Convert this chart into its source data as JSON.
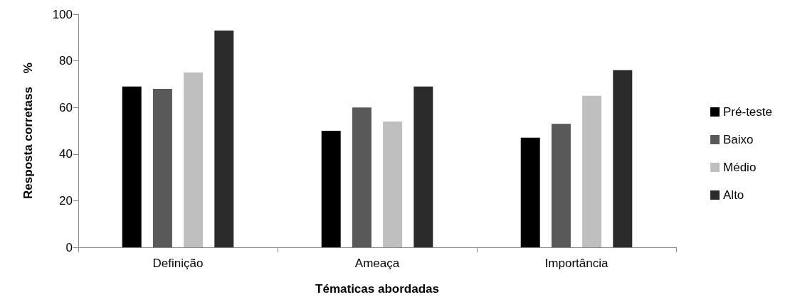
{
  "chart_data": {
    "type": "bar",
    "xlabel": "Tématicas abordadas",
    "ylabel": "Resposta corretass    %",
    "categories": [
      "Definição",
      "Ameaça",
      "Importância"
    ],
    "series": [
      {
        "name": "Pré-teste",
        "color": "#000000",
        "values": [
          69,
          50,
          47
        ]
      },
      {
        "name": "Baixo",
        "color": "#595959",
        "values": [
          68,
          60,
          53
        ]
      },
      {
        "name": "Médio",
        "color": "#bfbfbf",
        "values": [
          75,
          54,
          65
        ]
      },
      {
        "name": "Alto",
        "color": "#2b2b2b",
        "values": [
          93,
          69,
          76
        ]
      }
    ],
    "ylim": [
      0,
      100
    ],
    "yticks": [
      0,
      20,
      40,
      60,
      80,
      100
    ],
    "grid": false,
    "legend": "right"
  }
}
